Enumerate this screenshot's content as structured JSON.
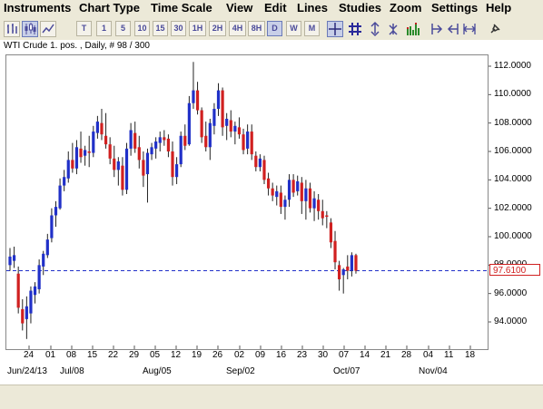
{
  "menu": [
    "Instruments",
    "Chart Type",
    "Time Scale",
    "View",
    "Edit",
    "Lines",
    "Studies",
    "Zoom",
    "Settings",
    "Help"
  ],
  "toolbar": {
    "timeframes": [
      "T",
      "1",
      "5",
      "10",
      "15",
      "30",
      "1H",
      "2H",
      "4H",
      "8H",
      "D",
      "W",
      "M"
    ],
    "active": "D"
  },
  "chart": {
    "title": "WTI Crude 1. pos. , Daily, # 98 / 300",
    "current_price": "97.6100",
    "colors": {
      "up": "#2030c8",
      "down": "#d02020",
      "price_line": "#2030c8"
    }
  },
  "chart_data": {
    "type": "candlestick",
    "title": "WTI Crude 1. pos. , Daily, # 98 / 300",
    "y_ticks": [
      "112.0000",
      "110.0000",
      "108.0000",
      "106.0000",
      "104.0000",
      "102.0000",
      "100.0000",
      "98.0000",
      "96.0000",
      "94.0000"
    ],
    "x_ticks": [
      "24",
      "01",
      "08",
      "15",
      "22",
      "29",
      "05",
      "12",
      "19",
      "26",
      "02",
      "09",
      "16",
      "23",
      "30",
      "07",
      "14",
      "21",
      "28",
      "04",
      "11",
      "18"
    ],
    "month_labels": [
      "Jun/24/13",
      "Jul/08",
      "Aug/05",
      "Sep/02",
      "Oct/07",
      "Nov/04"
    ],
    "ylim": [
      92.0,
      113.2
    ],
    "current_price": 97.61,
    "candles": [
      {
        "o": 98.0,
        "h": 99.2,
        "l": 97.6,
        "c": 98.6
      },
      {
        "o": 98.3,
        "h": 99.3,
        "l": 97.8,
        "c": 98.7
      },
      {
        "o": 97.4,
        "h": 97.9,
        "l": 94.6,
        "c": 95.0
      },
      {
        "o": 94.9,
        "h": 95.6,
        "l": 93.4,
        "c": 93.9
      },
      {
        "o": 94.2,
        "h": 95.8,
        "l": 92.8,
        "c": 95.1
      },
      {
        "o": 94.6,
        "h": 96.5,
        "l": 93.9,
        "c": 96.2
      },
      {
        "o": 95.9,
        "h": 96.8,
        "l": 95.3,
        "c": 96.5
      },
      {
        "o": 96.3,
        "h": 98.4,
        "l": 96.0,
        "c": 98.0
      },
      {
        "o": 97.9,
        "h": 99.0,
        "l": 97.3,
        "c": 98.8
      },
      {
        "o": 98.7,
        "h": 100.2,
        "l": 98.5,
        "c": 99.8
      },
      {
        "o": 99.9,
        "h": 102.0,
        "l": 99.6,
        "c": 101.5
      },
      {
        "o": 101.5,
        "h": 102.5,
        "l": 100.7,
        "c": 102.1
      },
      {
        "o": 102.0,
        "h": 104.1,
        "l": 101.9,
        "c": 103.6
      },
      {
        "o": 103.6,
        "h": 104.7,
        "l": 103.2,
        "c": 104.2
      },
      {
        "o": 104.1,
        "h": 106.0,
        "l": 103.8,
        "c": 105.4
      },
      {
        "o": 105.4,
        "h": 106.6,
        "l": 104.5,
        "c": 104.8
      },
      {
        "o": 104.8,
        "h": 106.8,
        "l": 104.4,
        "c": 106.3
      },
      {
        "o": 106.2,
        "h": 107.4,
        "l": 105.2,
        "c": 105.6
      },
      {
        "o": 105.7,
        "h": 106.4,
        "l": 105.0,
        "c": 106.1
      },
      {
        "o": 106.0,
        "h": 107.1,
        "l": 104.9,
        "c": 105.9
      },
      {
        "o": 105.9,
        "h": 107.8,
        "l": 105.6,
        "c": 107.4
      },
      {
        "o": 107.3,
        "h": 108.5,
        "l": 106.9,
        "c": 108.1
      },
      {
        "o": 108.0,
        "h": 109.0,
        "l": 106.8,
        "c": 107.2
      },
      {
        "o": 107.1,
        "h": 108.7,
        "l": 106.2,
        "c": 106.5
      },
      {
        "o": 106.5,
        "h": 107.0,
        "l": 105.1,
        "c": 105.5
      },
      {
        "o": 105.5,
        "h": 106.4,
        "l": 104.2,
        "c": 104.7
      },
      {
        "o": 104.7,
        "h": 105.6,
        "l": 103.6,
        "c": 105.3
      },
      {
        "o": 105.0,
        "h": 105.6,
        "l": 102.9,
        "c": 103.3
      },
      {
        "o": 103.3,
        "h": 106.6,
        "l": 103.0,
        "c": 106.2
      },
      {
        "o": 106.2,
        "h": 108.0,
        "l": 105.7,
        "c": 107.5
      },
      {
        "o": 107.3,
        "h": 108.1,
        "l": 105.9,
        "c": 106.2
      },
      {
        "o": 106.3,
        "h": 107.1,
        "l": 104.8,
        "c": 105.4
      },
      {
        "o": 105.4,
        "h": 106.0,
        "l": 103.5,
        "c": 104.3
      },
      {
        "o": 104.4,
        "h": 106.2,
        "l": 102.4,
        "c": 105.9
      },
      {
        "o": 105.8,
        "h": 106.6,
        "l": 105.4,
        "c": 106.3
      },
      {
        "o": 106.2,
        "h": 107.0,
        "l": 105.5,
        "c": 106.7
      },
      {
        "o": 106.6,
        "h": 107.4,
        "l": 106.0,
        "c": 107.0
      },
      {
        "o": 107.0,
        "h": 107.5,
        "l": 106.4,
        "c": 106.8
      },
      {
        "o": 106.9,
        "h": 107.2,
        "l": 105.6,
        "c": 106.0
      },
      {
        "o": 106.0,
        "h": 106.7,
        "l": 103.6,
        "c": 104.2
      },
      {
        "o": 104.2,
        "h": 105.6,
        "l": 103.7,
        "c": 105.1
      },
      {
        "o": 105.1,
        "h": 107.4,
        "l": 104.9,
        "c": 107.1
      },
      {
        "o": 107.1,
        "h": 107.9,
        "l": 106.1,
        "c": 106.4
      },
      {
        "o": 106.5,
        "h": 109.9,
        "l": 106.4,
        "c": 109.4
      },
      {
        "o": 109.4,
        "h": 112.3,
        "l": 109.0,
        "c": 110.3
      },
      {
        "o": 110.3,
        "h": 110.9,
        "l": 108.6,
        "c": 108.9
      },
      {
        "o": 108.9,
        "h": 109.1,
        "l": 106.6,
        "c": 107.0
      },
      {
        "o": 107.1,
        "h": 108.1,
        "l": 106.0,
        "c": 106.3
      },
      {
        "o": 106.3,
        "h": 108.3,
        "l": 105.4,
        "c": 108.0
      },
      {
        "o": 107.8,
        "h": 109.4,
        "l": 107.2,
        "c": 109.0
      },
      {
        "o": 109.0,
        "h": 110.8,
        "l": 108.5,
        "c": 110.3
      },
      {
        "o": 110.3,
        "h": 110.5,
        "l": 107.1,
        "c": 107.7
      },
      {
        "o": 107.8,
        "h": 108.7,
        "l": 106.8,
        "c": 108.3
      },
      {
        "o": 108.2,
        "h": 108.9,
        "l": 107.0,
        "c": 107.4
      },
      {
        "o": 107.4,
        "h": 108.1,
        "l": 106.5,
        "c": 107.8
      },
      {
        "o": 107.7,
        "h": 108.4,
        "l": 106.9,
        "c": 107.2
      },
      {
        "o": 107.2,
        "h": 107.6,
        "l": 105.8,
        "c": 106.1
      },
      {
        "o": 106.2,
        "h": 107.9,
        "l": 105.8,
        "c": 107.4
      },
      {
        "o": 107.4,
        "h": 107.9,
        "l": 105.4,
        "c": 105.8
      },
      {
        "o": 105.7,
        "h": 106.0,
        "l": 104.6,
        "c": 104.9
      },
      {
        "o": 104.9,
        "h": 105.8,
        "l": 104.6,
        "c": 105.5
      },
      {
        "o": 105.4,
        "h": 105.7,
        "l": 103.7,
        "c": 104.0
      },
      {
        "o": 104.1,
        "h": 104.5,
        "l": 102.9,
        "c": 103.4
      },
      {
        "o": 103.4,
        "h": 103.8,
        "l": 102.5,
        "c": 102.9
      },
      {
        "o": 102.8,
        "h": 103.6,
        "l": 102.2,
        "c": 103.2
      },
      {
        "o": 103.1,
        "h": 103.6,
        "l": 101.6,
        "c": 102.1
      },
      {
        "o": 102.1,
        "h": 102.9,
        "l": 101.2,
        "c": 102.6
      },
      {
        "o": 102.6,
        "h": 104.4,
        "l": 102.1,
        "c": 104.0
      },
      {
        "o": 104.0,
        "h": 104.4,
        "l": 102.8,
        "c": 103.1
      },
      {
        "o": 103.2,
        "h": 104.3,
        "l": 102.9,
        "c": 103.9
      },
      {
        "o": 103.8,
        "h": 104.2,
        "l": 101.6,
        "c": 102.5
      },
      {
        "o": 102.5,
        "h": 104.0,
        "l": 101.2,
        "c": 103.4
      },
      {
        "o": 103.4,
        "h": 103.8,
        "l": 101.7,
        "c": 102.0
      },
      {
        "o": 102.0,
        "h": 103.2,
        "l": 101.1,
        "c": 102.7
      },
      {
        "o": 102.6,
        "h": 103.0,
        "l": 101.2,
        "c": 101.8
      },
      {
        "o": 101.8,
        "h": 102.6,
        "l": 100.8,
        "c": 101.3
      },
      {
        "o": 101.5,
        "h": 101.8,
        "l": 100.6,
        "c": 101.4
      },
      {
        "o": 101.0,
        "h": 101.3,
        "l": 99.2,
        "c": 99.6
      },
      {
        "o": 99.7,
        "h": 100.4,
        "l": 97.7,
        "c": 98.2
      },
      {
        "o": 98.0,
        "h": 98.3,
        "l": 96.2,
        "c": 97.0
      },
      {
        "o": 97.3,
        "h": 97.8,
        "l": 96.0,
        "c": 97.7
      },
      {
        "o": 97.9,
        "h": 98.7,
        "l": 97.0,
        "c": 97.6
      },
      {
        "o": 97.6,
        "h": 98.9,
        "l": 97.2,
        "c": 98.7
      },
      {
        "o": 98.7,
        "h": 98.8,
        "l": 97.4,
        "c": 97.6
      }
    ]
  }
}
